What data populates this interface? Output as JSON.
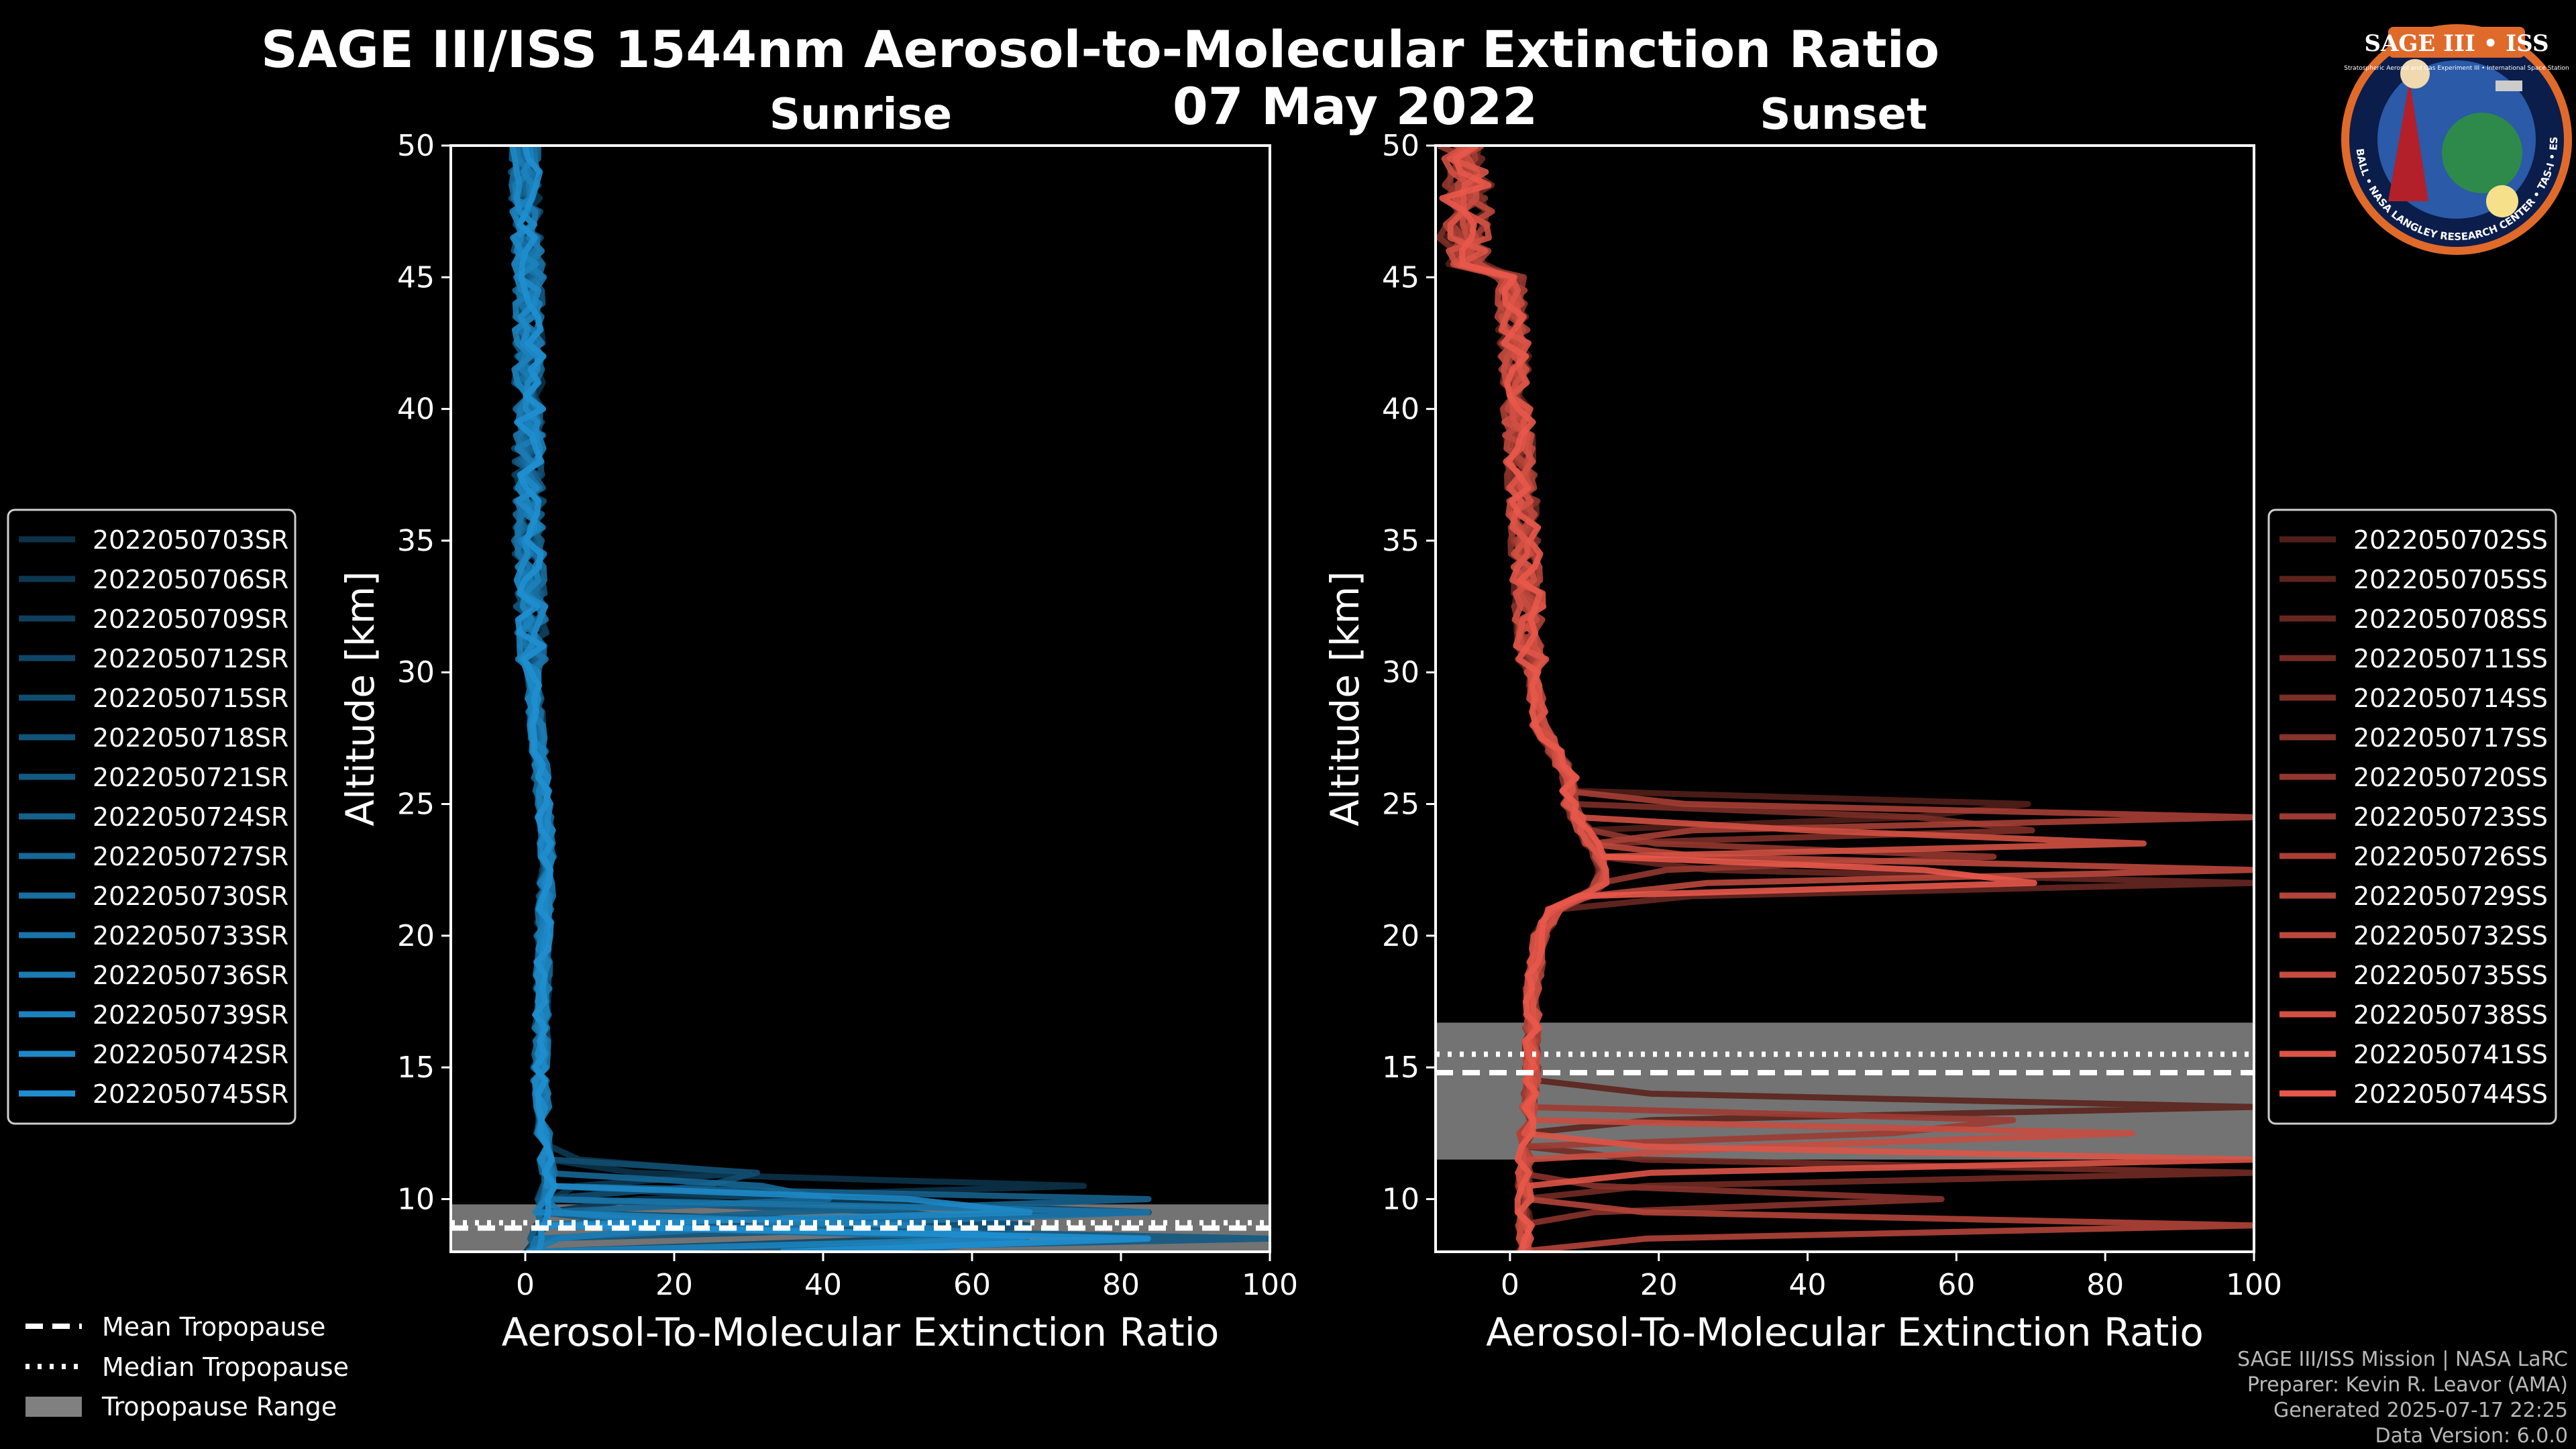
{
  "title": "SAGE III/ISS 1544nm Aerosol-to-Molecular Extinction Ratio",
  "date": "07 May 2022",
  "logo": {
    "text": "SAGE III • ISS",
    "ring_text": "BALL • NASA LANGLEY RESEARCH CENTER • TAS-I • ESA",
    "subtext": "Stratospheric Aerosol and Gas Experiment III • International Space Station"
  },
  "colors": {
    "background": "#000000",
    "sunrise": "#1f8fd0",
    "sunset": "#e8584a",
    "tropopause_band": "#808080"
  },
  "chart_data": [
    {
      "type": "line",
      "title": "Sunrise",
      "xlabel": "Aerosol-To-Molecular Extinction Ratio",
      "ylabel": "Altitude [km]",
      "xlim": [
        -10,
        100
      ],
      "ylim": [
        8,
        50
      ],
      "xticks": [
        0,
        20,
        40,
        60,
        80,
        100
      ],
      "yticks": [
        10,
        15,
        20,
        25,
        30,
        35,
        40,
        45,
        50
      ],
      "tropopause": {
        "mean": 8.9,
        "median": 9.1,
        "range": [
          8.0,
          9.8
        ]
      },
      "profile_shape": {
        "altitude": [
          8,
          9,
          10,
          10.5,
          11,
          11.5,
          12,
          15,
          20,
          23,
          25,
          28,
          30,
          35,
          40,
          45,
          48,
          50
        ],
        "ratio": [
          1,
          2,
          2.5,
          3,
          3,
          2.8,
          2.5,
          2,
          2.5,
          3,
          2.5,
          1.5,
          1,
          0.5,
          0.5,
          0.5,
          0,
          0
        ]
      },
      "series": [
        {
          "name": "2022050703SR",
          "spike_alt": 10.5,
          "spike_val": 75
        },
        {
          "name": "2022050706SR",
          "spike_alt": 11.0,
          "spike_val": 30
        },
        {
          "name": "2022050709SR",
          "spike_alt": 9.6,
          "spike_val": 100
        },
        {
          "name": "2022050712SR",
          "spike_alt": 8.8,
          "spike_val": 100
        },
        {
          "name": "2022050715SR",
          "spike_alt": 10.8,
          "spike_val": 45
        },
        {
          "name": "2022050718SR",
          "spike_alt": 9.2,
          "spike_val": 100
        },
        {
          "name": "2022050721SR",
          "spike_alt": 8.5,
          "spike_val": 100
        },
        {
          "name": "2022050724SR",
          "spike_alt": 9.9,
          "spike_val": 100
        },
        {
          "name": "2022050727SR",
          "spike_alt": 10.2,
          "spike_val": 60
        },
        {
          "name": "2022050730SR",
          "spike_alt": 8.3,
          "spike_val": 100
        },
        {
          "name": "2022050733SR",
          "spike_alt": 9.4,
          "spike_val": 100
        },
        {
          "name": "2022050736SR",
          "spike_alt": 9.0,
          "spike_val": 22
        },
        {
          "name": "2022050739SR",
          "spike_alt": 8.7,
          "spike_val": 100
        },
        {
          "name": "2022050742SR",
          "spike_alt": 9.7,
          "spike_val": 100
        },
        {
          "name": "2022050745SR",
          "spike_alt": 8.4,
          "spike_val": 100
        }
      ]
    },
    {
      "type": "line",
      "title": "Sunset",
      "xlabel": "Aerosol-To-Molecular Extinction Ratio",
      "ylabel": "Altitude [km]",
      "xlim": [
        -10,
        100
      ],
      "ylim": [
        8,
        50
      ],
      "xticks": [
        0,
        20,
        40,
        60,
        80,
        100
      ],
      "yticks": [
        10,
        15,
        20,
        25,
        30,
        35,
        40,
        45,
        50
      ],
      "tropopause": {
        "mean": 14.8,
        "median": 15.5,
        "range": [
          11.5,
          16.7
        ]
      },
      "profile_shape": {
        "altitude": [
          8,
          10,
          12,
          15,
          18,
          20,
          21,
          21.5,
          22,
          23,
          24,
          25,
          26,
          27,
          28,
          30,
          35,
          40,
          45,
          48,
          50
        ],
        "ratio": [
          2,
          2,
          2,
          3,
          3,
          4,
          6,
          10,
          12,
          12,
          10,
          8,
          8,
          6,
          4,
          3,
          2,
          1,
          0,
          0,
          0
        ]
      },
      "series": [
        {
          "name": "2022050702SS",
          "spike_alt": 24.8,
          "spike_val": 100
        },
        {
          "name": "2022050705SS",
          "spike_alt": 13.5,
          "spike_val": 100
        },
        {
          "name": "2022050708SS",
          "spike_alt": 22.0,
          "spike_val": 100
        },
        {
          "name": "2022050711SS",
          "spike_alt": 11.0,
          "spike_val": 100
        },
        {
          "name": "2022050714SS",
          "spike_alt": 24.2,
          "spike_val": 100
        },
        {
          "name": "2022050717SS",
          "spike_alt": 10.0,
          "spike_val": 58
        },
        {
          "name": "2022050720SS",
          "spike_alt": 23.0,
          "spike_val": 65
        },
        {
          "name": "2022050723SS",
          "spike_alt": 12.8,
          "spike_val": 100
        },
        {
          "name": "2022050726SS",
          "spike_alt": 24.5,
          "spike_val": 100
        },
        {
          "name": "2022050729SS",
          "spike_alt": 9.0,
          "spike_val": 100
        },
        {
          "name": "2022050732SS",
          "spike_alt": 22.5,
          "spike_val": 100
        },
        {
          "name": "2022050735SS",
          "spike_alt": 12.4,
          "spike_val": 100
        },
        {
          "name": "2022050738SS",
          "spike_alt": 23.6,
          "spike_val": 100
        },
        {
          "name": "2022050741SS",
          "spike_alt": 11.5,
          "spike_val": 100
        },
        {
          "name": "2022050744SS",
          "spike_alt": 22.2,
          "spike_val": 100
        }
      ]
    }
  ],
  "tropopause_legend": [
    "Mean Tropopause",
    "Median Tropopause",
    "Tropopause Range"
  ],
  "footer": [
    "SAGE III/ISS Mission | NASA LaRC",
    "Preparer: Kevin R. Leavor (AMA)",
    "Generated 2025-07-17 22:25",
    "Data Version: 6.0.0"
  ]
}
